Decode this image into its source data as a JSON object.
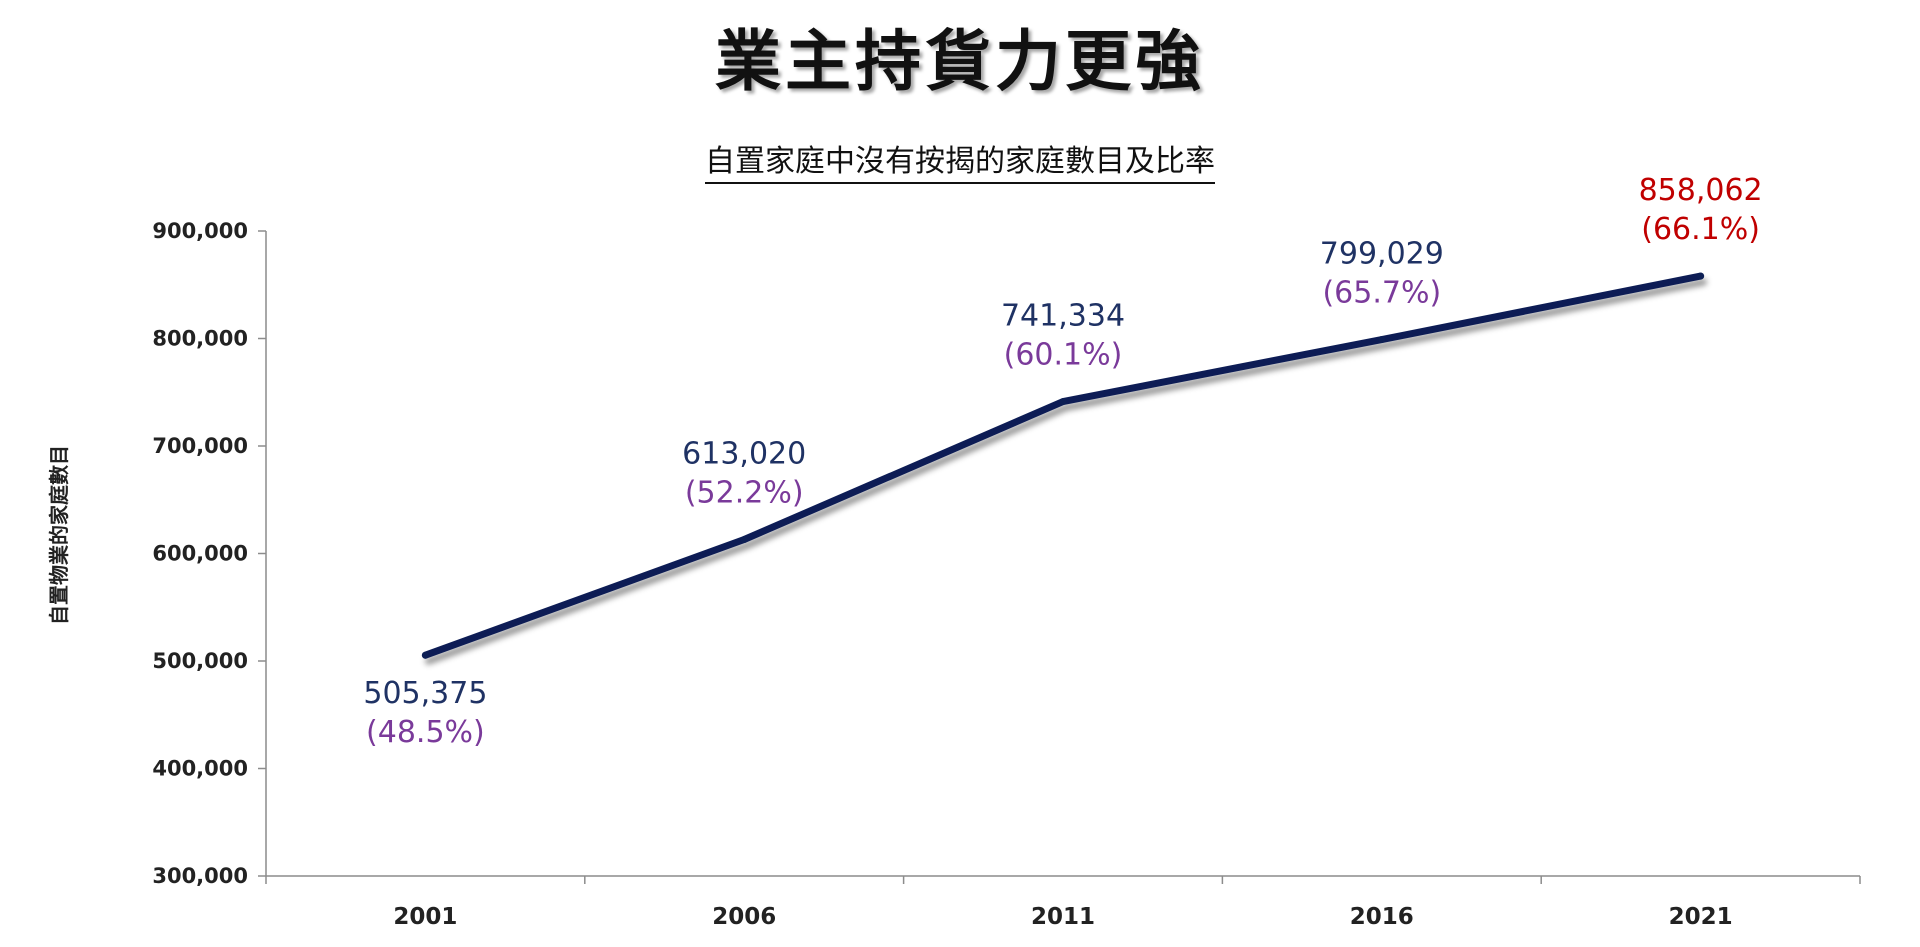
{
  "title": "業主持貨力更強",
  "chart_data": {
    "type": "line",
    "title": "自置家庭中沒有按揭的家庭數目及比率",
    "ylabel": "自置物業的家庭數目",
    "xlabel": "",
    "categories": [
      "2001",
      "2006",
      "2011",
      "2016",
      "2021"
    ],
    "series": [
      {
        "values": [
          505375,
          613020,
          741334,
          799029,
          858062
        ]
      }
    ],
    "value_labels": [
      "505,375",
      "613,020",
      "741,334",
      "799,029",
      "858,062"
    ],
    "percent_labels": [
      "(48.5%)",
      "(52.2%)",
      "(60.1%)",
      "(65.7%)",
      "(66.1%)"
    ],
    "ylim": [
      300000,
      900000
    ],
    "yticks": [
      300000,
      400000,
      500000,
      600000,
      700000,
      800000,
      900000
    ],
    "ytick_labels": [
      "300,000",
      "400,000",
      "500,000",
      "600,000",
      "700,000",
      "800,000",
      "900,000"
    ],
    "grid": false,
    "colors": {
      "line": "#0d1f55",
      "value_label": "#1f3264",
      "percent_label": "#7a3a9a",
      "highlight": "#c00000",
      "axis": "#8c8c8c"
    }
  }
}
